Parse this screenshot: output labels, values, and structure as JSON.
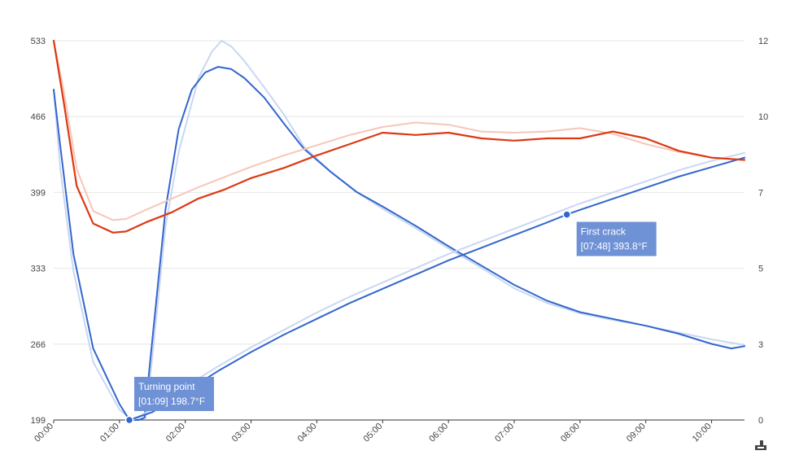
{
  "chart_data": {
    "type": "line",
    "title": "",
    "xlabel": "",
    "ylabel": "",
    "x_unit": "minutes (mm:ss)",
    "x_range": [
      0,
      10.5
    ],
    "x_ticks": [
      "00:00",
      "01:00",
      "02:00",
      "03:00",
      "04:00",
      "05:00",
      "06:00",
      "07:00",
      "08:00",
      "09:00",
      "10:00"
    ],
    "y_left": {
      "range": [
        199,
        533
      ],
      "ticks": [
        "199",
        "266",
        "333",
        "399",
        "466",
        "533"
      ]
    },
    "y_right": {
      "range": [
        0,
        12
      ],
      "ticks": [
        "0",
        "3",
        "5",
        "7",
        "10",
        "12"
      ]
    },
    "grid": true,
    "legend": "none",
    "series": [
      {
        "id": "temp_ref",
        "axis": "left",
        "color": "#c9d7f2",
        "width": 2,
        "points": [
          [
            0,
            490
          ],
          [
            0.1,
            420
          ],
          [
            0.3,
            330
          ],
          [
            0.6,
            250
          ],
          [
            1.0,
            208
          ],
          [
            1.2,
            199
          ],
          [
            1.4,
            201
          ],
          [
            1.5,
            255
          ],
          [
            1.7,
            370
          ],
          [
            1.9,
            435
          ],
          [
            2.2,
            500
          ],
          [
            2.4,
            523
          ],
          [
            2.55,
            533
          ],
          [
            2.7,
            528
          ],
          [
            2.9,
            515
          ],
          [
            3.2,
            492
          ],
          [
            3.5,
            468
          ],
          [
            3.8,
            440
          ],
          [
            4.2,
            418
          ],
          [
            4.6,
            400
          ],
          [
            5.0,
            385
          ],
          [
            5.5,
            368
          ],
          [
            6.0,
            350
          ],
          [
            6.5,
            333
          ],
          [
            7.0,
            315
          ],
          [
            7.5,
            302
          ],
          [
            8.0,
            293
          ],
          [
            8.5,
            287
          ],
          [
            9.0,
            282
          ],
          [
            9.5,
            276
          ],
          [
            10.0,
            270
          ],
          [
            10.5,
            265
          ]
        ]
      },
      {
        "id": "temp",
        "axis": "left",
        "color": "#3366cc",
        "width": 2,
        "points": [
          [
            0,
            490
          ],
          [
            0.1,
            440
          ],
          [
            0.3,
            345
          ],
          [
            0.6,
            262
          ],
          [
            1.0,
            213
          ],
          [
            1.15,
            199
          ],
          [
            1.3,
            199
          ],
          [
            1.38,
            201
          ],
          [
            1.5,
            270
          ],
          [
            1.7,
            385
          ],
          [
            1.9,
            455
          ],
          [
            2.1,
            490
          ],
          [
            2.3,
            505
          ],
          [
            2.5,
            510
          ],
          [
            2.7,
            508
          ],
          [
            2.9,
            500
          ],
          [
            3.2,
            483
          ],
          [
            3.5,
            460
          ],
          [
            3.8,
            438
          ],
          [
            4.2,
            418
          ],
          [
            4.6,
            400
          ],
          [
            5.0,
            387
          ],
          [
            5.5,
            370
          ],
          [
            6.0,
            352
          ],
          [
            6.5,
            335
          ],
          [
            7.0,
            318
          ],
          [
            7.5,
            304
          ],
          [
            8.0,
            294
          ],
          [
            8.5,
            288
          ],
          [
            9.0,
            282
          ],
          [
            9.5,
            275
          ],
          [
            10.0,
            266
          ],
          [
            10.3,
            262
          ],
          [
            10.5,
            264
          ]
        ]
      },
      {
        "id": "ror_ref",
        "axis": "right",
        "color": "#c9d7f2",
        "width": 2,
        "points": [
          [
            1.2,
            0
          ],
          [
            1.5,
            0.35
          ],
          [
            2.0,
            1.05
          ],
          [
            2.5,
            1.7
          ],
          [
            3.0,
            2.3
          ],
          [
            3.5,
            2.85
          ],
          [
            4.0,
            3.4
          ],
          [
            4.5,
            3.9
          ],
          [
            5.0,
            4.35
          ],
          [
            5.5,
            4.8
          ],
          [
            6.0,
            5.25
          ],
          [
            6.5,
            5.65
          ],
          [
            7.0,
            6.05
          ],
          [
            7.5,
            6.45
          ],
          [
            8.0,
            6.85
          ],
          [
            8.5,
            7.2
          ],
          [
            9.0,
            7.55
          ],
          [
            9.5,
            7.9
          ],
          [
            10.0,
            8.2
          ],
          [
            10.5,
            8.45
          ]
        ]
      },
      {
        "id": "ror",
        "axis": "right",
        "color": "#3366cc",
        "width": 2,
        "points": [
          [
            1.15,
            0
          ],
          [
            1.5,
            0.25
          ],
          [
            2.0,
            0.9
          ],
          [
            2.5,
            1.55
          ],
          [
            3.0,
            2.15
          ],
          [
            3.5,
            2.7
          ],
          [
            4.0,
            3.2
          ],
          [
            4.5,
            3.7
          ],
          [
            5.0,
            4.15
          ],
          [
            5.5,
            4.6
          ],
          [
            6.0,
            5.05
          ],
          [
            6.5,
            5.45
          ],
          [
            7.0,
            5.85
          ],
          [
            7.5,
            6.25
          ],
          [
            7.8,
            6.5
          ],
          [
            8.0,
            6.65
          ],
          [
            8.5,
            7.0
          ],
          [
            9.0,
            7.35
          ],
          [
            9.5,
            7.7
          ],
          [
            10.0,
            8.0
          ],
          [
            10.5,
            8.3
          ]
        ]
      },
      {
        "id": "red_ref",
        "axis": "left",
        "color": "#f6c6b8",
        "width": 2,
        "points": [
          [
            0,
            533
          ],
          [
            0.15,
            490
          ],
          [
            0.35,
            420
          ],
          [
            0.6,
            383
          ],
          [
            0.9,
            375
          ],
          [
            1.1,
            376
          ],
          [
            1.4,
            384
          ],
          [
            1.8,
            394
          ],
          [
            2.2,
            404
          ],
          [
            2.6,
            413
          ],
          [
            3.0,
            422
          ],
          [
            3.5,
            432
          ],
          [
            4.0,
            441
          ],
          [
            4.5,
            450
          ],
          [
            5.0,
            457
          ],
          [
            5.5,
            461
          ],
          [
            6.0,
            459
          ],
          [
            6.5,
            453
          ],
          [
            7.0,
            452
          ],
          [
            7.5,
            453
          ],
          [
            8.0,
            456
          ],
          [
            8.5,
            451
          ],
          [
            9.0,
            442
          ],
          [
            9.5,
            435
          ],
          [
            10.0,
            430
          ],
          [
            10.5,
            428
          ]
        ]
      },
      {
        "id": "red",
        "axis": "left",
        "color": "#dc3912",
        "width": 2.2,
        "points": [
          [
            0,
            533
          ],
          [
            0.15,
            480
          ],
          [
            0.35,
            405
          ],
          [
            0.6,
            372
          ],
          [
            0.9,
            364
          ],
          [
            1.1,
            365
          ],
          [
            1.4,
            373
          ],
          [
            1.8,
            382
          ],
          [
            2.2,
            394
          ],
          [
            2.6,
            402
          ],
          [
            3.0,
            412
          ],
          [
            3.5,
            421
          ],
          [
            4.0,
            432
          ],
          [
            4.5,
            442
          ],
          [
            5.0,
            452
          ],
          [
            5.5,
            450
          ],
          [
            6.0,
            452
          ],
          [
            6.5,
            447
          ],
          [
            7.0,
            445
          ],
          [
            7.5,
            447
          ],
          [
            8.0,
            447
          ],
          [
            8.5,
            453
          ],
          [
            9.0,
            447
          ],
          [
            9.5,
            436
          ],
          [
            10.0,
            430
          ],
          [
            10.5,
            428
          ]
        ]
      }
    ],
    "annotations": [
      {
        "series": "temp",
        "x": 1.15,
        "y": 199,
        "line1": "Turning point",
        "line2": "[01:09] 198.7°F",
        "placement": "above-right"
      },
      {
        "series": "ror",
        "x": 7.8,
        "y": 6.5,
        "line1": "First crack",
        "line2": "[07:48] 393.8°F",
        "placement": "below-right"
      }
    ],
    "watermark_icon": "brand-logo-icon"
  }
}
